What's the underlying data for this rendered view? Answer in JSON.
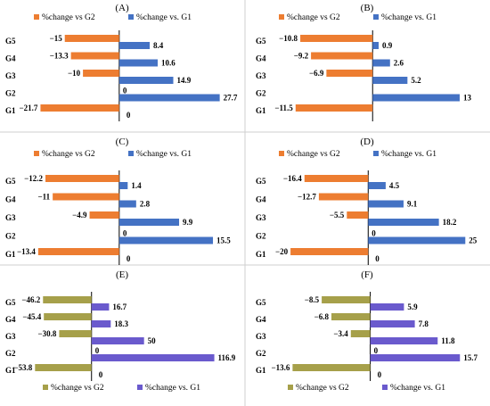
{
  "colors": {
    "orange": "#ED7D31",
    "blue": "#4472C4",
    "olive": "#A6A04A",
    "purple": "#6A5ACD"
  },
  "chart_data": [
    {
      "type": "bar",
      "title": "(A)",
      "categories": [
        "G5",
        "G4",
        "G3",
        "G2",
        "G1"
      ],
      "xlim": [
        -25,
        30
      ],
      "series": [
        {
          "name": "%change vs G2",
          "values": [
            -15,
            -13.3,
            -10,
            0,
            -21.7
          ],
          "labels": [
            "−15",
            "−13.3",
            "−10",
            "0",
            "−21.7"
          ]
        },
        {
          "name": "%change vs. G1",
          "values": [
            8.4,
            10.6,
            14.9,
            27.7,
            0
          ],
          "labels": [
            "8.4",
            "10.6",
            "14.9",
            "27.7",
            "0"
          ]
        }
      ]
    },
    {
      "type": "bar",
      "title": "(B)",
      "categories": [
        "G5",
        "G4",
        "G3",
        "G2",
        "G1"
      ],
      "xlim": [
        -14,
        15
      ],
      "series": [
        {
          "name": "%change vs G2",
          "values": [
            -10.8,
            -9.2,
            -6.9,
            0,
            -11.5
          ],
          "labels": [
            "−10.8",
            "−9.2",
            "−6.9",
            "",
            "−11.5"
          ]
        },
        {
          "name": "%change vs. G1",
          "values": [
            0.9,
            2.6,
            5.2,
            13,
            0
          ],
          "labels": [
            "0.9",
            "2.6",
            "5.2",
            "13",
            ""
          ]
        }
      ]
    },
    {
      "type": "bar",
      "title": "(C)",
      "categories": [
        "G5",
        "G4",
        "G3",
        "G2",
        "G1"
      ],
      "xlim": [
        -15,
        18
      ],
      "series": [
        {
          "name": "%change vs G2",
          "values": [
            -12.2,
            -11,
            -4.9,
            0,
            -13.4
          ],
          "labels": [
            "−12.2",
            "−11",
            "−4.9",
            "0",
            "−13.4"
          ]
        },
        {
          "name": "%change vs. G1",
          "values": [
            1.4,
            2.8,
            9.9,
            15.5,
            0
          ],
          "labels": [
            "1.4",
            "2.8",
            "9.9",
            "15.5",
            "0"
          ]
        }
      ]
    },
    {
      "type": "bar",
      "title": "(D)",
      "categories": [
        "G5",
        "G4",
        "G3",
        "G2",
        "G1"
      ],
      "xlim": [
        -23,
        27
      ],
      "series": [
        {
          "name": "%change vs G2",
          "values": [
            -16.4,
            -12.7,
            -5.5,
            0,
            -20
          ],
          "labels": [
            "−16.4",
            "−12.7",
            "−5.5",
            "0",
            "−20"
          ]
        },
        {
          "name": "%change vs. G1",
          "values": [
            4.5,
            9.1,
            18.2,
            25,
            0
          ],
          "labels": [
            "4.5",
            "9.1",
            "18.2",
            "25",
            "0"
          ]
        }
      ]
    },
    {
      "type": "bar",
      "title": "(E)",
      "categories": [
        "G5",
        "G4",
        "G3",
        "G2",
        "G1"
      ],
      "xlim": [
        -60,
        130
      ],
      "series": [
        {
          "name": "%change vs G2",
          "values": [
            -46.2,
            -45.4,
            -30.8,
            0,
            -53.8
          ],
          "labels": [
            "−46.2",
            "−45.4",
            "−30.8",
            "0",
            "−53.8"
          ]
        },
        {
          "name": "%change vs. G1",
          "values": [
            16.7,
            18.3,
            50,
            116.9,
            0
          ],
          "labels": [
            "16.7",
            "18.3",
            "50",
            "116.9",
            "0"
          ]
        }
      ]
    },
    {
      "type": "bar",
      "title": "(F)",
      "categories": [
        "G5",
        "G4",
        "G3",
        "G2",
        "G1"
      ],
      "xlim": [
        -16,
        18
      ],
      "series": [
        {
          "name": "%change vs G2",
          "values": [
            -8.5,
            -6.8,
            -3.4,
            0,
            -13.6
          ],
          "labels": [
            "−8.5",
            "−6.8",
            "−3.4",
            "0",
            "−13.6"
          ]
        },
        {
          "name": "%change vs. G1",
          "values": [
            5.9,
            7.8,
            11.8,
            15.7,
            0
          ],
          "labels": [
            "5.9",
            "7.8",
            "11.8",
            "15.7",
            "0"
          ]
        }
      ]
    }
  ]
}
